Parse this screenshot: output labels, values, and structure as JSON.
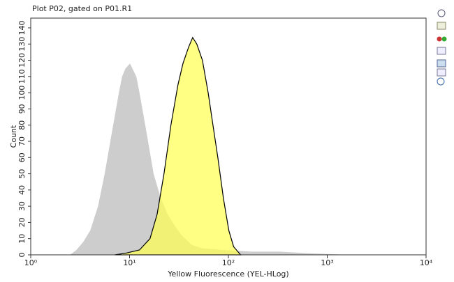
{
  "chart_data": {
    "type": "area",
    "title": "Plot P02, gated on P01.R1",
    "xlabel": "Yellow Fluorescence (YEL-HLog)",
    "ylabel": "Count",
    "xscale": "log",
    "xlim": [
      1,
      10000
    ],
    "xticks": [
      {
        "value": 1,
        "label": "10⁰"
      },
      {
        "value": 10,
        "label": "10¹"
      },
      {
        "value": 100,
        "label": "10²"
      },
      {
        "value": 1000,
        "label": "10³"
      },
      {
        "value": 10000,
        "label": "10⁴"
      }
    ],
    "ylim": [
      0,
      146
    ],
    "yticks": [
      0,
      10,
      20,
      30,
      40,
      50,
      60,
      70,
      80,
      90,
      100,
      110,
      120,
      130,
      140
    ],
    "series": [
      {
        "color": "#cdcdcd",
        "opacity": 1,
        "outline": "none",
        "x": [
          2.5,
          2.9,
          3.4,
          4.0,
          4.8,
          5.6,
          6.6,
          7.8,
          8.4,
          9.1,
          10.1,
          11.7,
          12.6,
          14.9,
          17.5,
          20.7,
          24.3,
          28.6,
          33.7,
          42.8,
          54.6,
          89,
          171,
          328,
          626,
          1680
        ],
        "values": [
          0,
          3,
          8,
          15,
          30,
          50,
          75,
          100,
          110,
          115,
          118,
          110,
          100,
          75,
          50,
          35,
          25,
          18,
          12,
          6,
          4,
          3,
          2,
          2,
          1,
          0
        ]
      },
      {
        "color": "#ffff55",
        "opacity": 0.72,
        "outline": "#000000",
        "x": [
          7.1,
          9.1,
          12.6,
          16.1,
          19,
          22.3,
          26.2,
          30.9,
          34.7,
          39.5,
          43.5,
          47.9,
          54.6,
          62.4,
          69.8,
          78.2,
          89,
          101,
          113,
          133
        ],
        "values": [
          0,
          1,
          3,
          10,
          25,
          50,
          80,
          105,
          118,
          128,
          134,
          130,
          120,
          100,
          80,
          60,
          35,
          15,
          5,
          0
        ]
      }
    ]
  }
}
